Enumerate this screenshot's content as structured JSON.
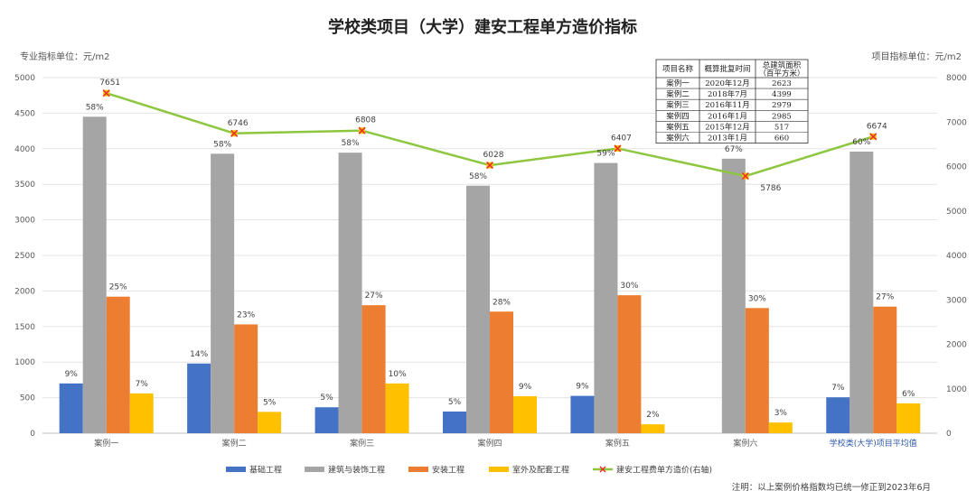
{
  "chart_data": {
    "type": "bar",
    "title": "学校类项目（大学）建安工程单方造价指标",
    "left_axis_label": "专业指标单位：元/m2",
    "right_axis_label": "项目指标单位：元/m2",
    "categories": [
      "案例一",
      "案例二",
      "案例三",
      "案例四",
      "案例五",
      "案例六",
      "学校类(大学)项目平均值"
    ],
    "ylim_left": [
      0,
      5000
    ],
    "ylim_right": [
      0,
      8000
    ],
    "yticks_left": [
      "0",
      "500",
      "1000",
      "1500",
      "2000",
      "2500",
      "3000",
      "3500",
      "4000",
      "4500",
      "5000"
    ],
    "yticks_right": [
      "0",
      "1000",
      "2000",
      "3000",
      "4000",
      "5000",
      "6000",
      "7000",
      "8000"
    ],
    "series": [
      {
        "name": "基础工程",
        "type": "bar",
        "axis": "left",
        "color": "#4472c4",
        "values": [
          700,
          980,
          365,
          305,
          525,
          null,
          505
        ],
        "labels": [
          "9%",
          "14%",
          "5%",
          "5%",
          "9%",
          "",
          "7%"
        ]
      },
      {
        "name": "建筑与装饰工程",
        "type": "bar",
        "axis": "left",
        "color": "#a5a5a5",
        "values": [
          4450,
          3930,
          3945,
          3480,
          3800,
          3860,
          3960
        ],
        "labels": [
          "58%",
          "58%",
          "58%",
          "58%",
          "59%",
          "67%",
          "60%"
        ]
      },
      {
        "name": "安装工程",
        "type": "bar",
        "axis": "left",
        "color": "#ed7d31",
        "values": [
          1920,
          1530,
          1800,
          1710,
          1940,
          1760,
          1780
        ],
        "labels": [
          "25%",
          "23%",
          "27%",
          "28%",
          "30%",
          "30%",
          "27%"
        ]
      },
      {
        "name": "室外及配套工程",
        "type": "bar",
        "axis": "left",
        "color": "#ffc000",
        "values": [
          560,
          300,
          700,
          520,
          125,
          150,
          420
        ],
        "labels": [
          "7%",
          "5%",
          "10%",
          "9%",
          "2%",
          "3%",
          "6%"
        ]
      },
      {
        "name": "建安工程费单方造价(右轴)",
        "type": "line",
        "axis": "right",
        "color": "#8dc63f",
        "marker_color": "#e8302a",
        "values": [
          7651,
          6746,
          6808,
          6028,
          6407,
          5786,
          6674
        ],
        "labels": [
          "7651",
          "6746",
          "6808",
          "6028",
          "6407",
          "5786",
          "6674"
        ]
      }
    ],
    "grid": true,
    "legend_position": "bottom"
  },
  "info_table": {
    "headers": [
      "项目名称",
      "概算批复时间",
      "总建筑面积",
      "（百平方米）"
    ],
    "rows": [
      [
        "案例一",
        "2020年12月",
        "2623"
      ],
      [
        "案例二",
        "2018年7月",
        "4399"
      ],
      [
        "案例三",
        "2016年11月",
        "2979"
      ],
      [
        "案例四",
        "2016年1月",
        "2985"
      ],
      [
        "案例五",
        "2015年12月",
        "517"
      ],
      [
        "案例六",
        "2013年1月",
        "660"
      ]
    ]
  },
  "footnote": "注明：以上案例价格指数均已统一修正到2023年6月"
}
